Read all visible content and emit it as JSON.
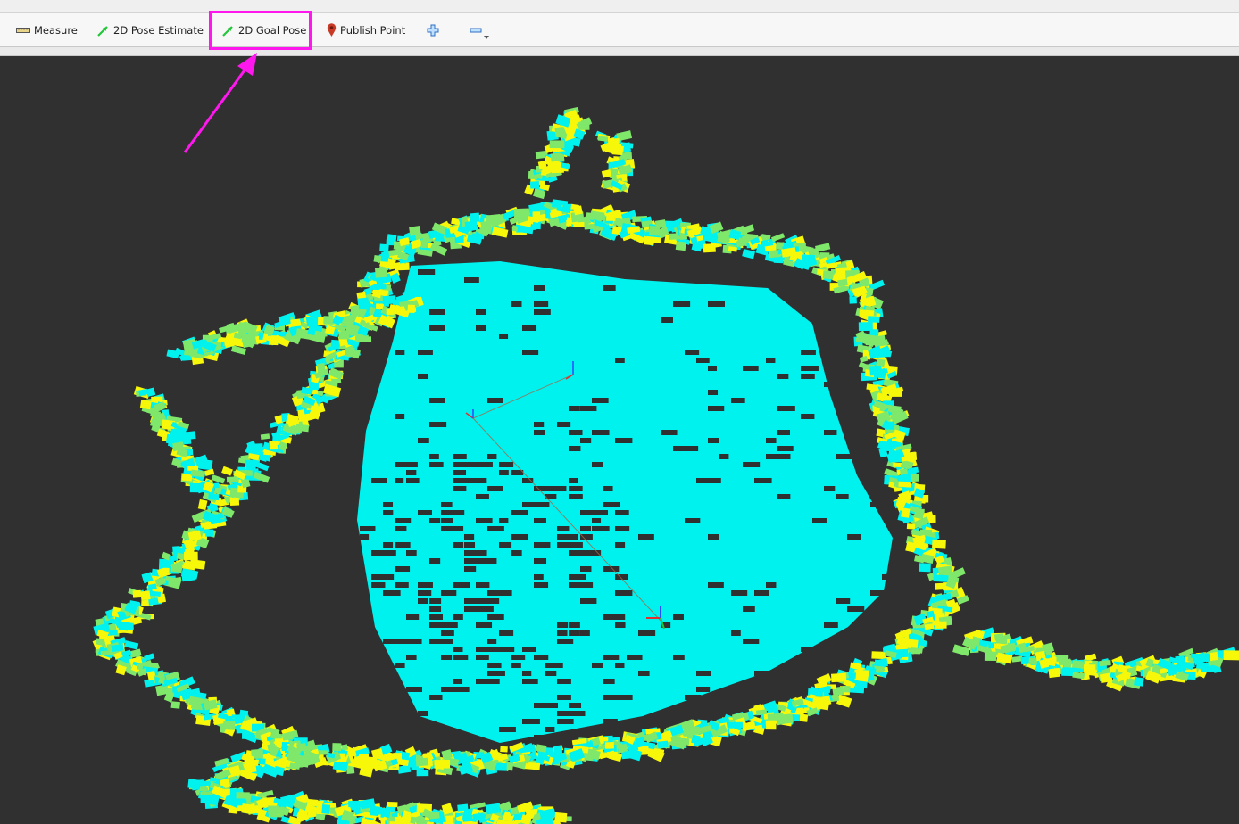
{
  "toolbar": {
    "tools": [
      {
        "label": "Measure",
        "icon": "ruler-icon"
      },
      {
        "label": "2D Pose Estimate",
        "icon": "green-arrow-icon"
      },
      {
        "label": "2D Goal Pose",
        "icon": "green-arrow-icon"
      },
      {
        "label": "Publish Point",
        "icon": "map-pin-icon"
      }
    ],
    "add_tool_icon": "plus-icon",
    "remove_tool_icon": "minus-icon",
    "remove_tool_dropdown_icon": "dropdown-caret-icon"
  },
  "annotation": {
    "highlight_color": "#ff18ee",
    "highlighted_tool": "2D Goal Pose"
  },
  "viewport": {
    "background": "#303030",
    "colors": {
      "low": "#00f2ef",
      "mid": "#7fe86a",
      "high": "#f7f70a"
    }
  }
}
